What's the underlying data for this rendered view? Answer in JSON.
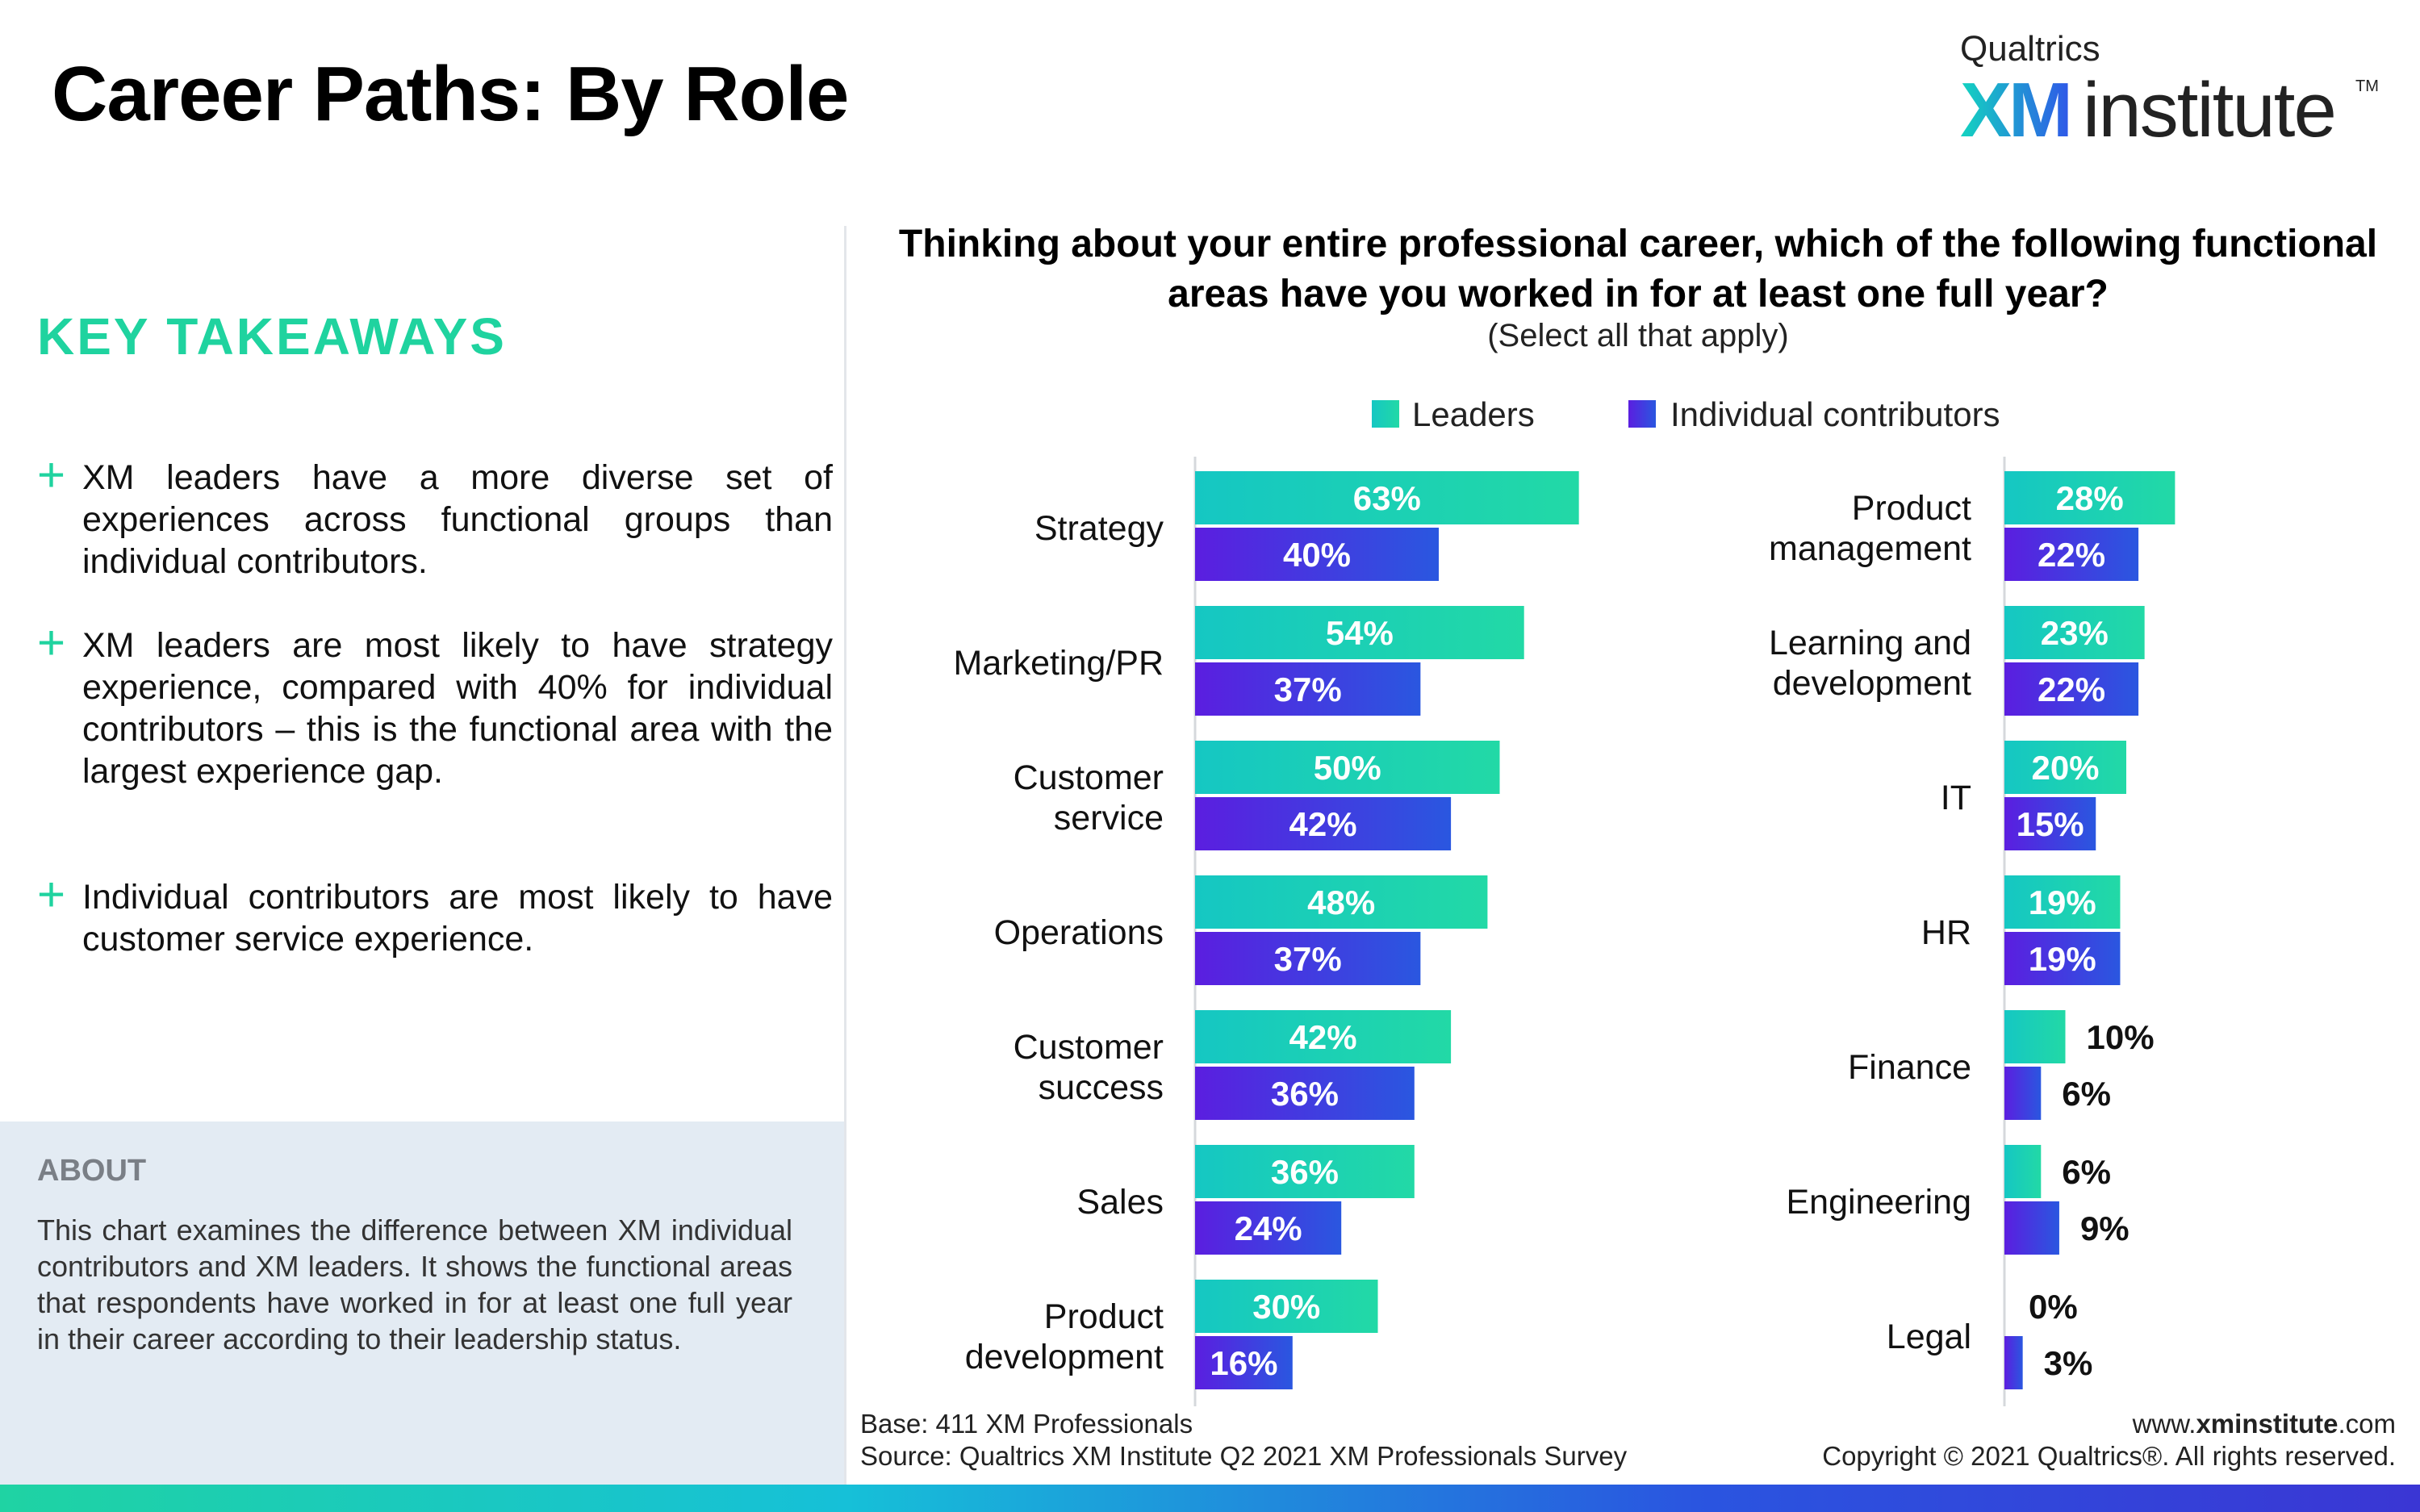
{
  "page": {
    "title": "Career Paths: By Role",
    "logo": {
      "top": "Qualtrics",
      "xm": "XM",
      "institute": "institute",
      "tm": "TM"
    }
  },
  "sidebar": {
    "heading": "KEY TAKEAWAYS",
    "takeaways": [
      "XM leaders have a more diverse set of experiences across functional groups than individual contributors.",
      "XM leaders are most likely to have strategy experience, compared with 40% for individual contributors – this is the functional area with the largest experience gap.",
      "Individual contributors are most likely to have customer service experience."
    ],
    "about_heading": "ABOUT",
    "about_text": "This chart examines the difference between XM individual contributors and XM leaders. It shows the functional areas that respondents have worked in for at least one full year in their career according to their leadership status."
  },
  "question": {
    "title": "Thinking about your entire professional career, which of the following functional areas have you worked in for at least one full year?",
    "subtitle": "(Select all that apply)"
  },
  "colors": {
    "leaders_start": "#15c7c3",
    "leaders_end": "#22d9a6",
    "ic_start": "#5b1ee0",
    "ic_end": "#2a57e0",
    "accent": "#1fd39f"
  },
  "chart_data": [
    {
      "type": "bar",
      "orientation": "horizontal",
      "categories": [
        "Strategy",
        "Marketing/PR",
        "Customer service",
        "Operations",
        "Customer success",
        "Sales",
        "Product development"
      ],
      "series": [
        {
          "name": "Leaders",
          "values": [
            63,
            54,
            50,
            48,
            42,
            36,
            30
          ]
        },
        {
          "name": "Individual contributors",
          "values": [
            40,
            37,
            42,
            37,
            36,
            24,
            16
          ]
        }
      ],
      "unit": "%",
      "legend": "top"
    },
    {
      "type": "bar",
      "orientation": "horizontal",
      "categories": [
        "Product management",
        "Learning and development",
        "IT",
        "HR",
        "Finance",
        "Engineering",
        "Legal"
      ],
      "series": [
        {
          "name": "Leaders",
          "values": [
            28,
            23,
            20,
            19,
            10,
            6,
            0
          ]
        },
        {
          "name": "Individual contributors",
          "values": [
            22,
            22,
            15,
            19,
            6,
            9,
            3
          ]
        }
      ],
      "unit": "%",
      "legend": "top"
    }
  ],
  "footer": {
    "base": "Base: 411 XM Professionals",
    "source": "Source: Qualtrics XM Institute Q2 2021 XM Professionals Survey",
    "url_prefix": "www.",
    "url_bold": "xminstitute",
    "url_suffix": ".com",
    "copyright": "Copyright © 2021 Qualtrics®. All rights reserved."
  }
}
